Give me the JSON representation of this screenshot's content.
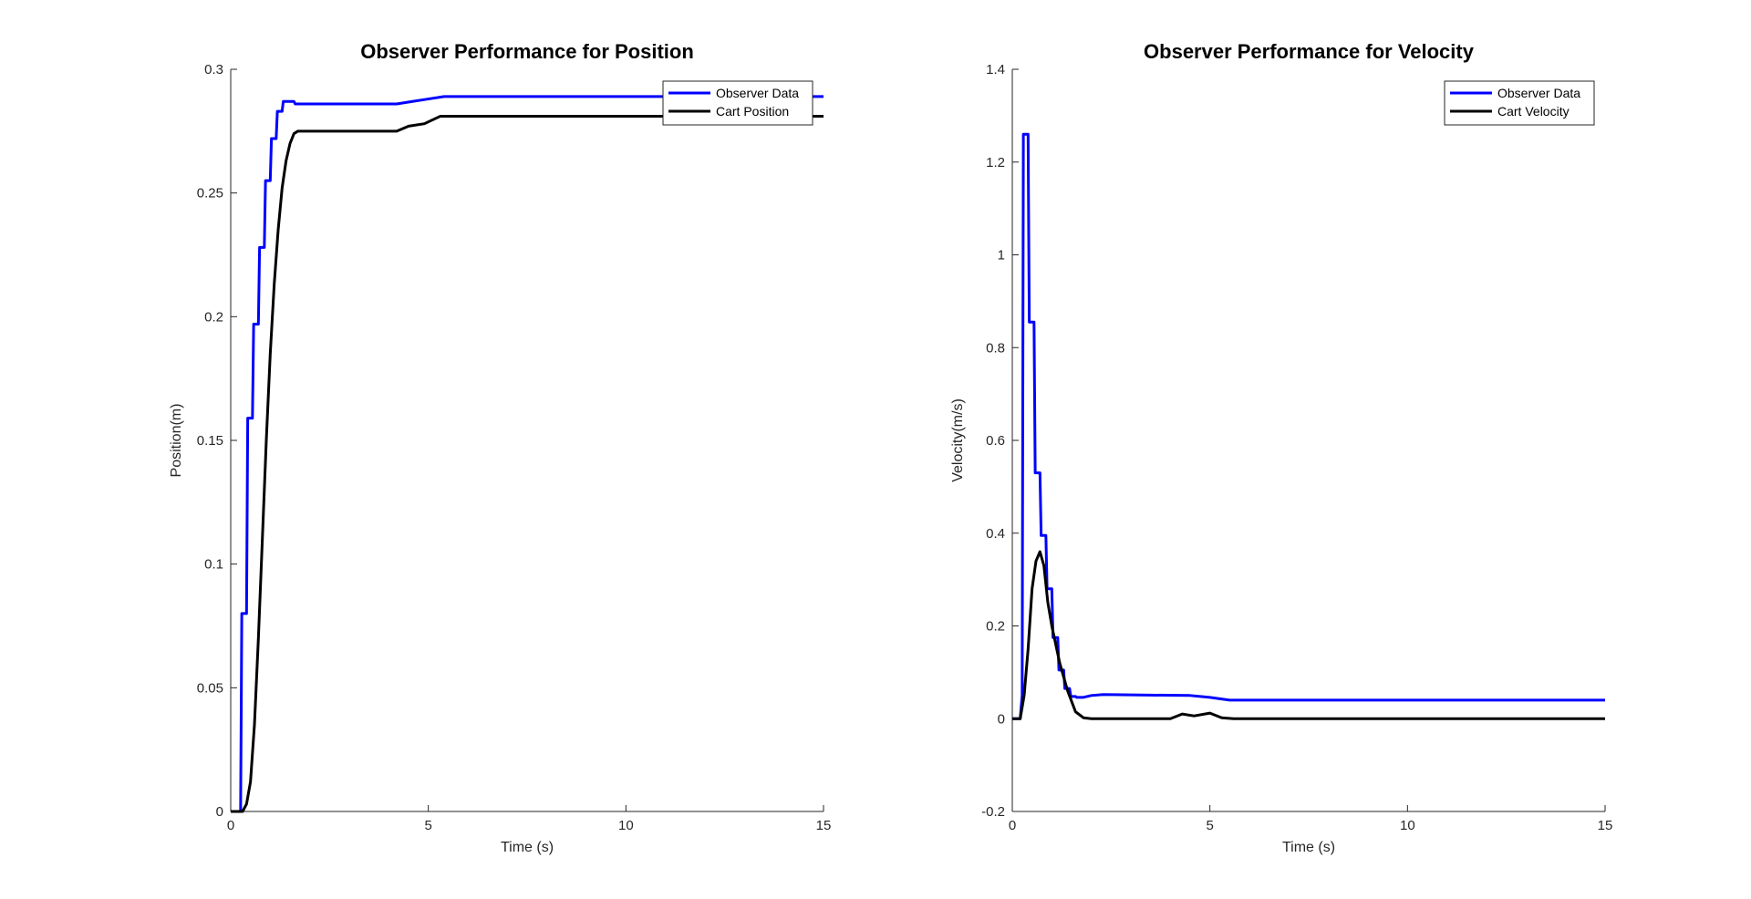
{
  "chart_data": [
    {
      "type": "line",
      "title": "Observer Performance for Position",
      "xlabel": "Time (s)",
      "ylabel": "Position(m)",
      "xlim": [
        0,
        15
      ],
      "ylim": [
        0,
        0.3
      ],
      "xticks": [
        0,
        5,
        10,
        15
      ],
      "xtick_labels": [
        "0",
        "5",
        "10",
        "15"
      ],
      "yticks": [
        0,
        0.05,
        0.1,
        0.15,
        0.2,
        0.25,
        0.3
      ],
      "ytick_labels": [
        "0",
        "0.05",
        "0.1",
        "0.15",
        "0.2",
        "0.25",
        "0.3"
      ],
      "grid": false,
      "legend_position": "top-right",
      "series": [
        {
          "name": "Observer Data",
          "color": "#0000ff",
          "x": [
            0,
            0.25,
            0.28,
            0.4,
            0.43,
            0.55,
            0.58,
            0.7,
            0.73,
            0.85,
            0.88,
            1.0,
            1.03,
            1.15,
            1.18,
            1.3,
            1.33,
            1.45,
            1.48,
            1.6,
            1.63,
            1.8,
            2.2,
            3.0,
            4.2,
            4.6,
            5.0,
            5.4,
            6.0,
            15
          ],
          "y": [
            0,
            0,
            0.08,
            0.08,
            0.159,
            0.159,
            0.197,
            0.197,
            0.228,
            0.228,
            0.255,
            0.255,
            0.272,
            0.272,
            0.283,
            0.283,
            0.287,
            0.287,
            0.287,
            0.287,
            0.286,
            0.286,
            0.286,
            0.286,
            0.286,
            0.287,
            0.288,
            0.289,
            0.289,
            0.289
          ]
        },
        {
          "name": "Cart Position",
          "color": "#000000",
          "x": [
            0,
            0.3,
            0.4,
            0.5,
            0.6,
            0.7,
            0.8,
            0.9,
            1.0,
            1.1,
            1.2,
            1.3,
            1.4,
            1.5,
            1.6,
            1.7,
            2.0,
            3.0,
            4.2,
            4.5,
            4.9,
            5.3,
            6.0,
            15
          ],
          "y": [
            0,
            0,
            0.003,
            0.012,
            0.035,
            0.07,
            0.11,
            0.15,
            0.185,
            0.213,
            0.235,
            0.252,
            0.263,
            0.27,
            0.274,
            0.275,
            0.275,
            0.275,
            0.275,
            0.277,
            0.278,
            0.281,
            0.281,
            0.281
          ]
        }
      ]
    },
    {
      "type": "line",
      "title": "Observer Performance for Velocity",
      "xlabel": "Time (s)",
      "ylabel": "Velocity(m/s)",
      "xlim": [
        0,
        15
      ],
      "ylim": [
        -0.2,
        1.4
      ],
      "xticks": [
        0,
        5,
        10,
        15
      ],
      "xtick_labels": [
        "0",
        "5",
        "10",
        "15"
      ],
      "yticks": [
        -0.2,
        0,
        0.2,
        0.4,
        0.6,
        0.8,
        1,
        1.2,
        1.4
      ],
      "ytick_labels": [
        "-0.2",
        "0",
        "0.2",
        "0.4",
        "0.6",
        "0.8",
        "1",
        "1.2",
        "1.4"
      ],
      "grid": false,
      "legend_position": "top-right",
      "series": [
        {
          "name": "Observer Data",
          "color": "#0000ff",
          "x": [
            0,
            0.2,
            0.25,
            0.28,
            0.4,
            0.43,
            0.55,
            0.58,
            0.7,
            0.73,
            0.85,
            0.88,
            1.0,
            1.03,
            1.15,
            1.18,
            1.3,
            1.33,
            1.45,
            1.48,
            1.6,
            1.63,
            1.75,
            1.8,
            2.0,
            2.3,
            4.5,
            5.0,
            5.5,
            6.0,
            15
          ],
          "y": [
            0,
            0,
            0.05,
            1.26,
            1.26,
            0.855,
            0.855,
            0.53,
            0.53,
            0.395,
            0.395,
            0.28,
            0.28,
            0.175,
            0.175,
            0.105,
            0.105,
            0.065,
            0.065,
            0.048,
            0.048,
            0.046,
            0.046,
            0.046,
            0.05,
            0.052,
            0.05,
            0.046,
            0.04,
            0.04,
            0.04
          ]
        },
        {
          "name": "Cart Velocity",
          "color": "#000000",
          "x": [
            0,
            0.2,
            0.3,
            0.4,
            0.5,
            0.6,
            0.7,
            0.8,
            0.9,
            1.0,
            1.2,
            1.4,
            1.6,
            1.8,
            2.0,
            3.0,
            4.0,
            4.3,
            4.6,
            5.0,
            5.3,
            5.6,
            6.0,
            15
          ],
          "y": [
            0,
            0,
            0.05,
            0.15,
            0.28,
            0.34,
            0.36,
            0.33,
            0.25,
            0.2,
            0.12,
            0.06,
            0.015,
            0.002,
            0,
            0,
            0,
            0.01,
            0.006,
            0.012,
            0.002,
            0,
            0,
            0
          ]
        }
      ]
    }
  ]
}
